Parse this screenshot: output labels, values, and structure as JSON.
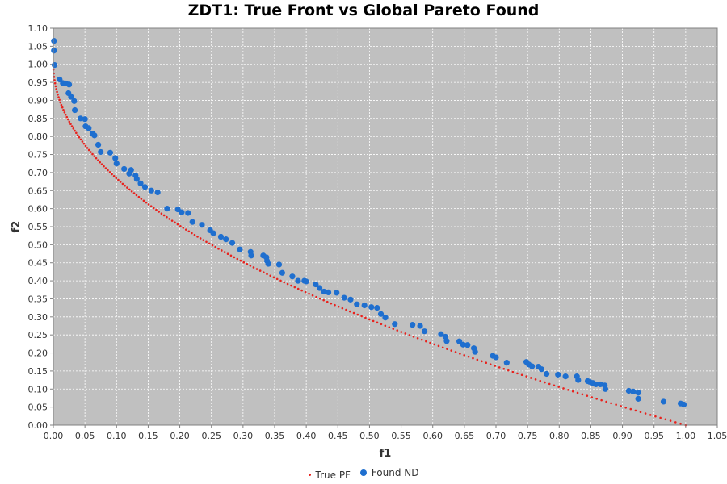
{
  "chart_data": {
    "type": "scatter",
    "title": "ZDT1: True Front vs Global Pareto Found",
    "xlabel": "f1",
    "ylabel": "f2",
    "xlim": [
      0,
      1.05
    ],
    "ylim": [
      0,
      1.1
    ],
    "grid": true,
    "legend_position": "bottom-center",
    "x_ticks": [
      "0.00",
      "0.05",
      "0.10",
      "0.15",
      "0.20",
      "0.25",
      "0.30",
      "0.35",
      "0.40",
      "0.45",
      "0.50",
      "0.55",
      "0.60",
      "0.65",
      "0.70",
      "0.75",
      "0.80",
      "0.85",
      "0.90",
      "0.95",
      "1.00",
      "1.05"
    ],
    "y_ticks": [
      "0.00",
      "0.05",
      "0.10",
      "0.15",
      "0.20",
      "0.25",
      "0.30",
      "0.35",
      "0.40",
      "0.45",
      "0.50",
      "0.55",
      "0.60",
      "0.65",
      "0.70",
      "0.75",
      "0.80",
      "0.85",
      "0.90",
      "0.95",
      "1.00",
      "1.05",
      "1.10"
    ],
    "series": [
      {
        "name": "True PF",
        "color": "#e8221d",
        "marker": "small-dot",
        "function": "f2 = 1 - sqrt(f1)",
        "points": 200
      },
      {
        "name": "Found ND",
        "color": "#1f6fcf",
        "marker": "circle",
        "points": [
          [
            0.001,
            1.065
          ],
          [
            0.001,
            1.038
          ],
          [
            0.002,
            0.998
          ],
          [
            0.01,
            0.958
          ],
          [
            0.015,
            0.948
          ],
          [
            0.02,
            0.947
          ],
          [
            0.025,
            0.944
          ],
          [
            0.024,
            0.92
          ],
          [
            0.028,
            0.91
          ],
          [
            0.033,
            0.898
          ],
          [
            0.034,
            0.873
          ],
          [
            0.043,
            0.85
          ],
          [
            0.05,
            0.848
          ],
          [
            0.051,
            0.828
          ],
          [
            0.056,
            0.823
          ],
          [
            0.062,
            0.808
          ],
          [
            0.065,
            0.803
          ],
          [
            0.071,
            0.777
          ],
          [
            0.075,
            0.757
          ],
          [
            0.09,
            0.755
          ],
          [
            0.098,
            0.74
          ],
          [
            0.1,
            0.725
          ],
          [
            0.112,
            0.71
          ],
          [
            0.123,
            0.707
          ],
          [
            0.12,
            0.697
          ],
          [
            0.13,
            0.692
          ],
          [
            0.132,
            0.682
          ],
          [
            0.138,
            0.67
          ],
          [
            0.145,
            0.66
          ],
          [
            0.155,
            0.65
          ],
          [
            0.165,
            0.645
          ],
          [
            0.18,
            0.6
          ],
          [
            0.197,
            0.598
          ],
          [
            0.203,
            0.59
          ],
          [
            0.213,
            0.588
          ],
          [
            0.22,
            0.563
          ],
          [
            0.235,
            0.555
          ],
          [
            0.248,
            0.54
          ],
          [
            0.253,
            0.532
          ],
          [
            0.265,
            0.522
          ],
          [
            0.273,
            0.515
          ],
          [
            0.283,
            0.505
          ],
          [
            0.295,
            0.487
          ],
          [
            0.312,
            0.48
          ],
          [
            0.313,
            0.47
          ],
          [
            0.332,
            0.47
          ],
          [
            0.337,
            0.465
          ],
          [
            0.338,
            0.455
          ],
          [
            0.34,
            0.447
          ],
          [
            0.357,
            0.445
          ],
          [
            0.362,
            0.422
          ],
          [
            0.378,
            0.412
          ],
          [
            0.387,
            0.4
          ],
          [
            0.397,
            0.4
          ],
          [
            0.4,
            0.398
          ],
          [
            0.415,
            0.39
          ],
          [
            0.421,
            0.38
          ],
          [
            0.428,
            0.37
          ],
          [
            0.435,
            0.368
          ],
          [
            0.448,
            0.367
          ],
          [
            0.46,
            0.353
          ],
          [
            0.47,
            0.348
          ],
          [
            0.48,
            0.335
          ],
          [
            0.492,
            0.332
          ],
          [
            0.503,
            0.327
          ],
          [
            0.512,
            0.325
          ],
          [
            0.518,
            0.308
          ],
          [
            0.525,
            0.298
          ],
          [
            0.54,
            0.28
          ],
          [
            0.568,
            0.278
          ],
          [
            0.58,
            0.275
          ],
          [
            0.587,
            0.26
          ],
          [
            0.613,
            0.252
          ],
          [
            0.62,
            0.245
          ],
          [
            0.622,
            0.233
          ],
          [
            0.642,
            0.232
          ],
          [
            0.648,
            0.223
          ],
          [
            0.655,
            0.222
          ],
          [
            0.665,
            0.213
          ],
          [
            0.667,
            0.203
          ],
          [
            0.695,
            0.192
          ],
          [
            0.7,
            0.188
          ],
          [
            0.717,
            0.173
          ],
          [
            0.748,
            0.175
          ],
          [
            0.752,
            0.168
          ],
          [
            0.757,
            0.163
          ],
          [
            0.767,
            0.162
          ],
          [
            0.772,
            0.155
          ],
          [
            0.78,
            0.142
          ],
          [
            0.798,
            0.14
          ],
          [
            0.81,
            0.135
          ],
          [
            0.828,
            0.135
          ],
          [
            0.83,
            0.125
          ],
          [
            0.845,
            0.122
          ],
          [
            0.848,
            0.12
          ],
          [
            0.853,
            0.117
          ],
          [
            0.858,
            0.113
          ],
          [
            0.865,
            0.113
          ],
          [
            0.872,
            0.11
          ],
          [
            0.873,
            0.1
          ],
          [
            0.91,
            0.095
          ],
          [
            0.917,
            0.093
          ],
          [
            0.925,
            0.09
          ],
          [
            0.925,
            0.073
          ],
          [
            0.965,
            0.065
          ],
          [
            0.992,
            0.06
          ],
          [
            0.997,
            0.057
          ]
        ]
      }
    ]
  }
}
